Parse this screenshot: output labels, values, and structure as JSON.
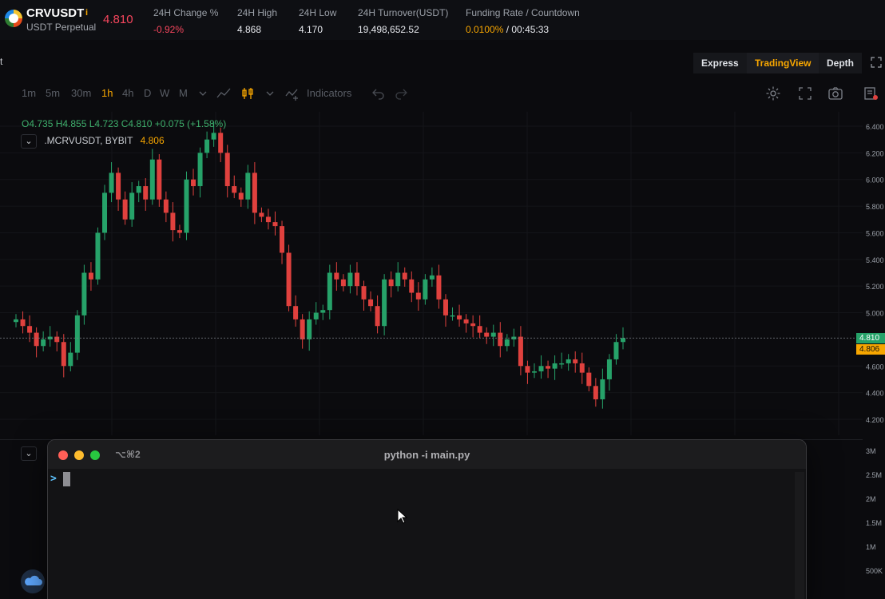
{
  "ticker": {
    "symbol": "CRVUSDT",
    "info_icon": "info-icon",
    "subtitle": "USDT Perpetual",
    "last_price": "4.810",
    "stats": [
      {
        "label": "24H Change %",
        "value": "-0.92%",
        "tone": "red"
      },
      {
        "label": "24H High",
        "value": "4.868",
        "tone": "neutral"
      },
      {
        "label": "24H Low",
        "value": "4.170",
        "tone": "neutral"
      },
      {
        "label": "24H Turnover(USDT)",
        "value": "19,498,652.52",
        "tone": "neutral"
      }
    ],
    "funding": {
      "label": "Funding Rate / Countdown",
      "rate": "0.0100%",
      "countdown": "/ 00:45:33"
    }
  },
  "viewbar": {
    "edge_text": "t",
    "options": [
      "Express",
      "TradingView",
      "Depth"
    ],
    "active": "TradingView"
  },
  "toolbar": {
    "timeframes": [
      "1m",
      "5m",
      "30m",
      "1h",
      "4h",
      "D",
      "W",
      "M"
    ],
    "active_timeframe": "1h",
    "indicators_label": "Indicators"
  },
  "chart": {
    "ohlc": "O4.735  H4.855  L4.723  C4.810  +0.075 (+1.58%)",
    "overlay_name": ".MCRVUSDT, BYBIT",
    "overlay_value": "4.806",
    "price_ticks": [
      "6.400",
      "6.200",
      "6.000",
      "5.800",
      "5.600",
      "5.400",
      "5.200",
      "5.000",
      "4.810",
      "4.806",
      "4.600",
      "4.400",
      "4.200"
    ],
    "current_price_label": "4.810",
    "mark_price_label": "4.806",
    "volume_ticks": [
      "3M",
      "2.5M",
      "2M",
      "1.5M",
      "1M",
      "500K"
    ],
    "colors": {
      "up": "#26a269",
      "down": "#e0413e",
      "accent": "#f7a600",
      "background": "#0b0b0e"
    }
  },
  "chart_data": {
    "type": "line",
    "title": "",
    "xlabel": "",
    "ylabel": "",
    "ylim": [
      4.1,
      6.5
    ],
    "y": [
      4.95,
      4.9,
      4.85,
      4.75,
      4.8,
      4.82,
      4.78,
      4.6,
      4.7,
      4.98,
      5.3,
      5.25,
      5.6,
      5.9,
      6.05,
      5.85,
      5.7,
      5.9,
      5.95,
      5.85,
      6.15,
      5.85,
      5.75,
      5.62,
      5.6,
      6.0,
      5.95,
      6.2,
      6.3,
      6.35,
      6.2,
      5.95,
      5.9,
      5.85,
      6.05,
      5.75,
      5.72,
      5.68,
      5.65,
      5.45,
      5.05,
      4.95,
      4.8,
      4.95,
      5.0,
      5.02,
      5.3,
      5.25,
      5.2,
      5.3,
      5.2,
      5.1,
      5.05,
      4.9,
      5.25,
      5.2,
      5.3,
      5.25,
      5.15,
      5.1,
      5.25,
      5.28,
      5.1,
      4.98,
      4.98,
      4.95,
      4.92,
      4.9,
      4.85,
      4.82,
      4.85,
      4.75,
      4.8,
      4.82,
      4.6,
      4.55,
      4.56,
      4.6,
      4.58,
      4.62,
      4.62,
      4.65,
      4.62,
      4.55,
      4.45,
      4.35,
      4.5,
      4.65,
      4.78,
      4.81
    ]
  },
  "terminal": {
    "shortcut": "⌥⌘2",
    "title": "python -i main.py",
    "prompt": ">"
  }
}
